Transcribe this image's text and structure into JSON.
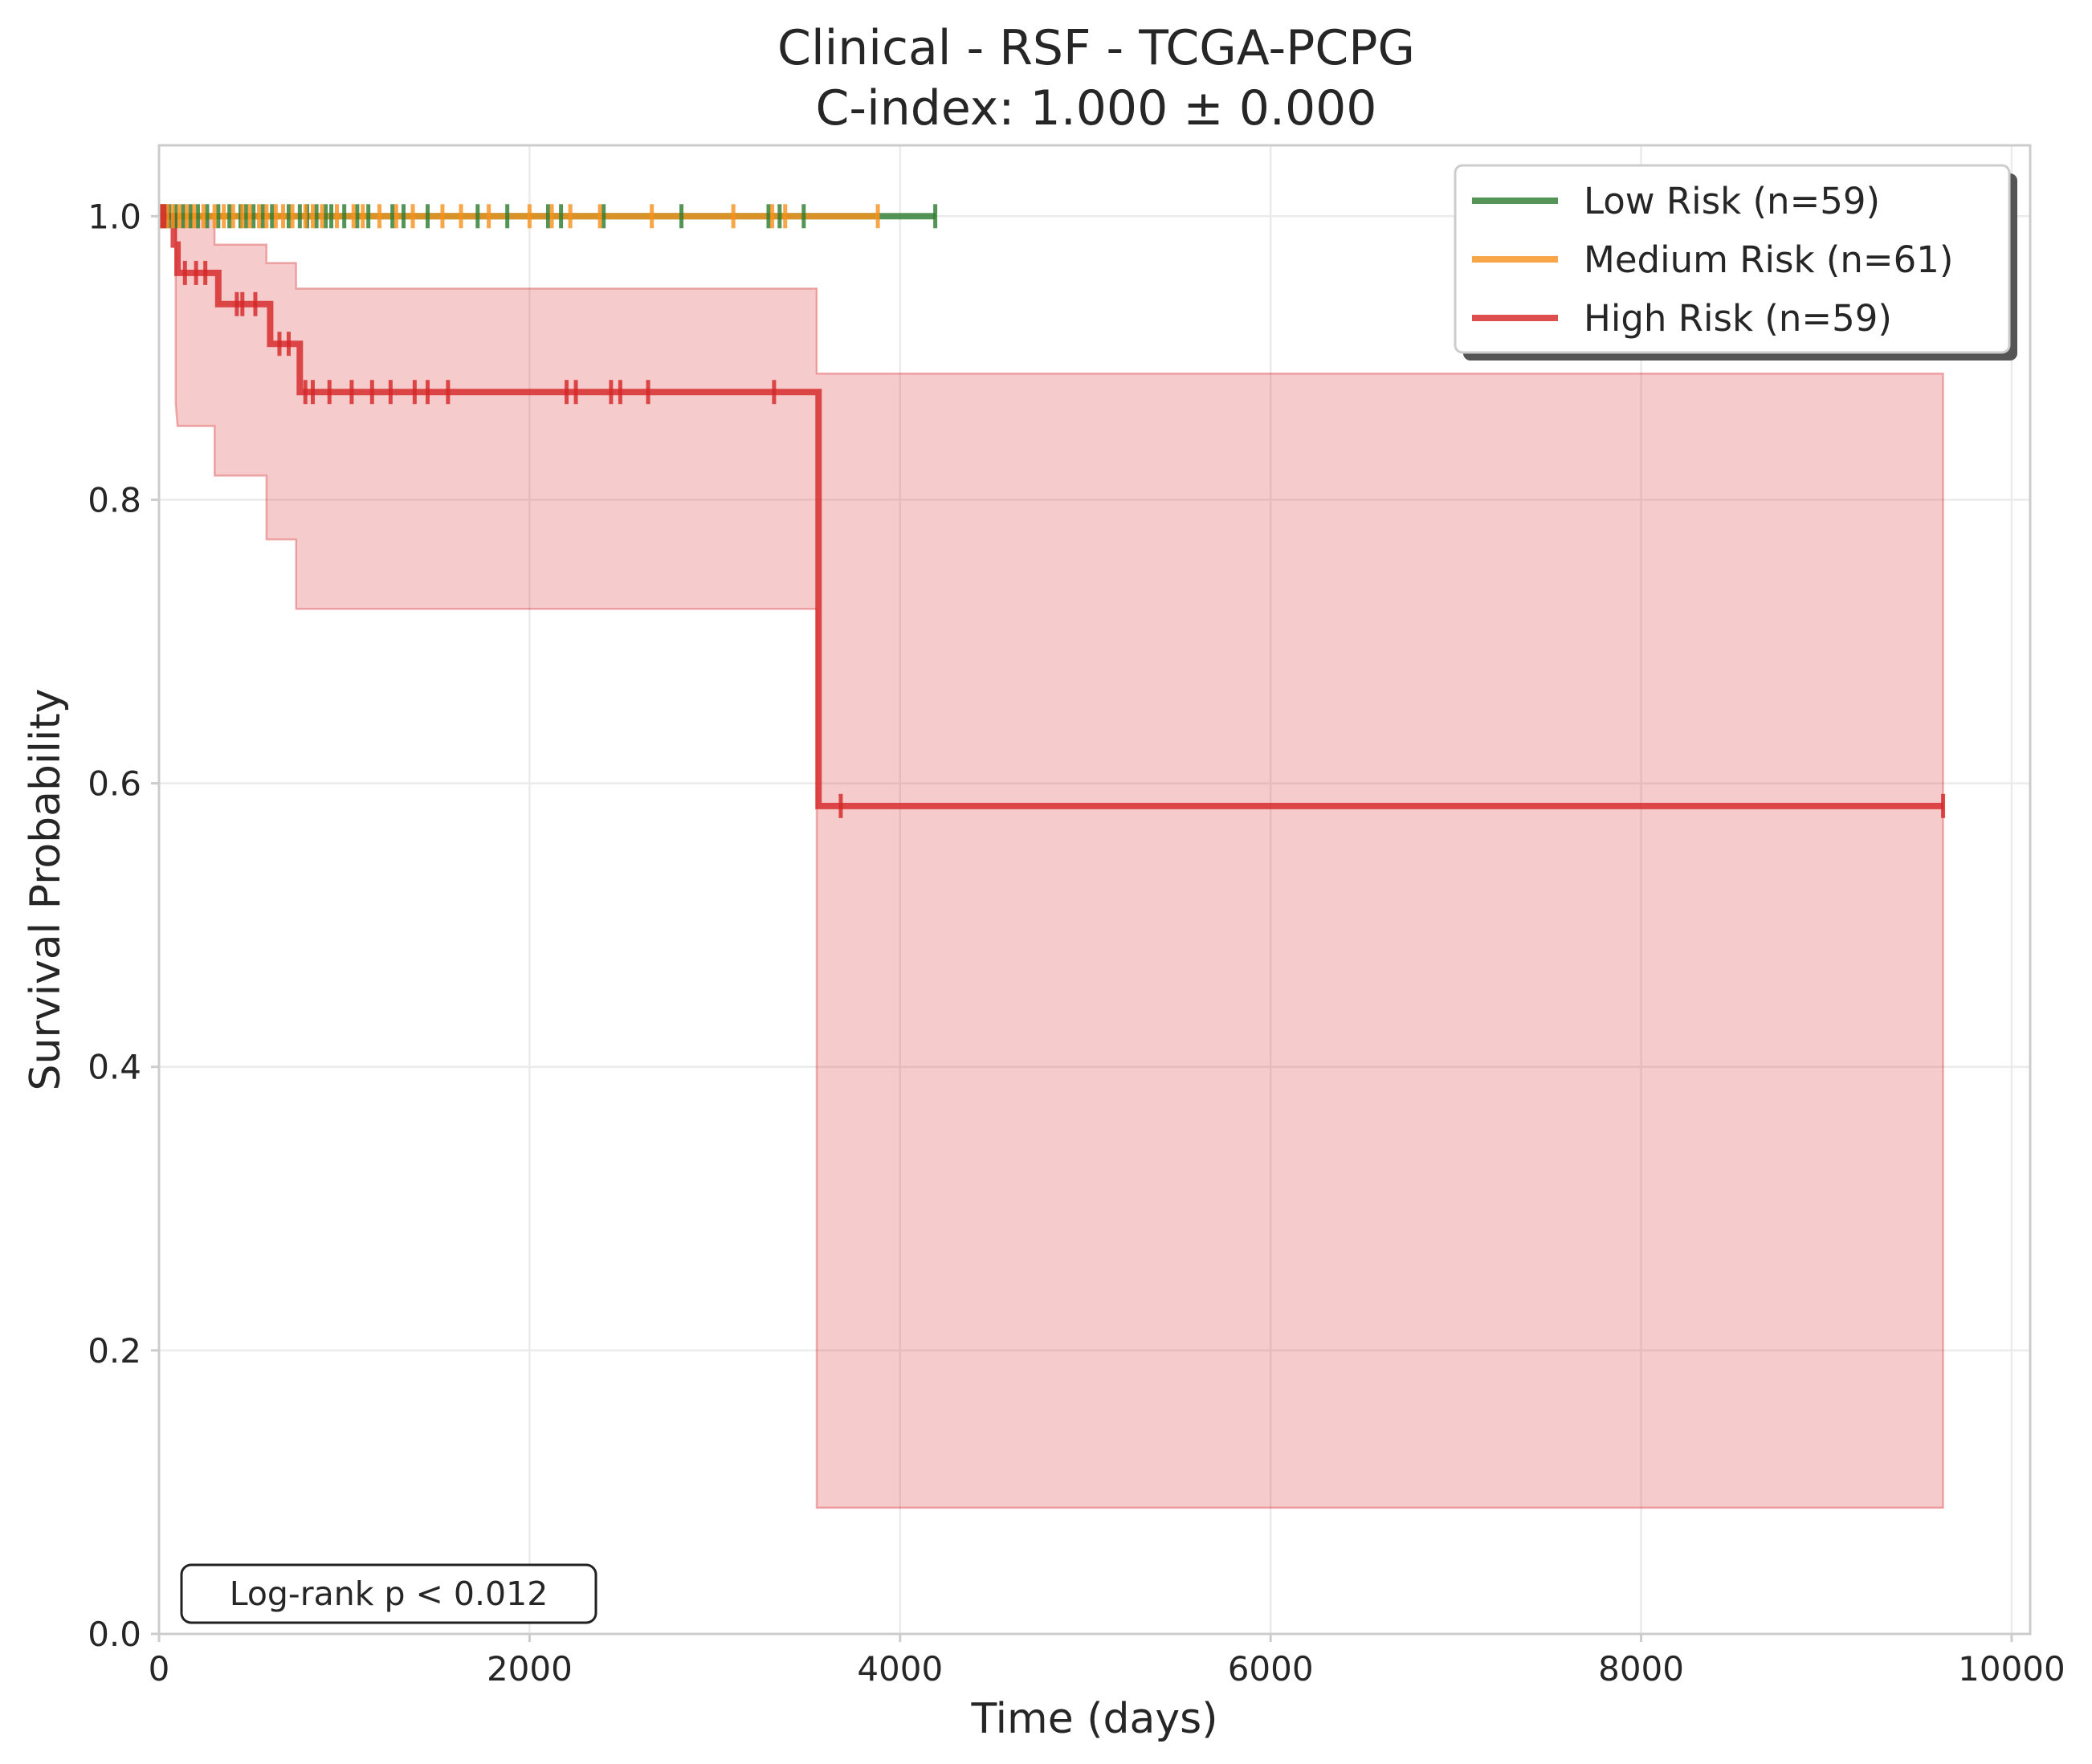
{
  "chart_data": {
    "type": "line",
    "subtype": "kaplan-meier",
    "title_line1": "Clinical - RSF - TCGA-PCPG",
    "title_line2": "C-index: 1.000 ± 0.000",
    "xlabel": "Time (days)",
    "ylabel": "Survival Probability",
    "xlim": [
      0,
      10100
    ],
    "ylim": [
      0,
      1.05
    ],
    "xticks": [
      0,
      2000,
      4000,
      6000,
      8000,
      10000
    ],
    "xtick_labels": [
      "0",
      "2000",
      "4000",
      "6000",
      "8000",
      "10000"
    ],
    "yticks": [
      0,
      0.2,
      0.4,
      0.6,
      0.8,
      1.0
    ],
    "ytick_labels": [
      "0.0",
      "0.2",
      "0.4",
      "0.6",
      "0.8",
      "1.0"
    ],
    "grid": true,
    "legend_position": "top-right",
    "annotation": "Log-rank p < 0.012",
    "series": [
      {
        "name": "Low Risk (n=59)",
        "color": "#2e7d32",
        "steps": [
          [
            0,
            1.0
          ],
          [
            4190,
            1.0
          ]
        ],
        "censors": [
          10,
          30,
          55,
          90,
          130,
          170,
          210,
          260,
          320,
          380,
          440,
          470,
          510,
          560,
          610,
          700,
          760,
          800,
          850,
          900,
          930,
          1000,
          1070,
          1130,
          1260,
          1320,
          1450,
          1720,
          1880,
          2100,
          2170,
          2400,
          2820,
          3290,
          3350,
          3480,
          4190
        ]
      },
      {
        "name": "Medium Risk (n=61)",
        "color": "#f7931e",
        "steps": [
          [
            0,
            1.0
          ],
          [
            3880,
            1.0
          ]
        ],
        "censors": [
          20,
          45,
          75,
          110,
          150,
          190,
          240,
          300,
          350,
          400,
          450,
          490,
          540,
          580,
          630,
          670,
          720,
          790,
          830,
          880,
          960,
          1050,
          1100,
          1190,
          1280,
          1370,
          1530,
          1630,
          1780,
          2000,
          2120,
          2220,
          2380,
          2660,
          3100,
          3310,
          3380,
          3880
        ]
      },
      {
        "name": "High Risk (n=59)",
        "color": "#d62728",
        "steps": [
          [
            0,
            1.0
          ],
          [
            60,
            1.0
          ],
          [
            80,
            0.98
          ],
          [
            100,
            0.96
          ],
          [
            300,
            0.96
          ],
          [
            320,
            0.938
          ],
          [
            580,
            0.938
          ],
          [
            600,
            0.91
          ],
          [
            750,
            0.91
          ],
          [
            760,
            0.876
          ],
          [
            3560,
            0.876
          ],
          [
            3560,
            0.584
          ],
          [
            9630,
            0.584
          ]
        ],
        "ci_upper": [
          [
            90,
            1.0
          ],
          [
            300,
            1.0
          ],
          [
            300,
            0.98
          ],
          [
            580,
            0.98
          ],
          [
            580,
            0.967
          ],
          [
            740,
            0.967
          ],
          [
            740,
            0.949
          ],
          [
            3550,
            0.949
          ],
          [
            3550,
            0.889
          ],
          [
            9630,
            0.889
          ]
        ],
        "ci_lower": [
          [
            90,
            0.868
          ],
          [
            100,
            0.852
          ],
          [
            300,
            0.852
          ],
          [
            300,
            0.817
          ],
          [
            580,
            0.817
          ],
          [
            580,
            0.772
          ],
          [
            740,
            0.772
          ],
          [
            740,
            0.723
          ],
          [
            3550,
            0.723
          ],
          [
            3550,
            0.089
          ],
          [
            9630,
            0.089
          ]
        ],
        "censors": [
          10,
          30,
          140,
          200,
          250,
          420,
          450,
          520,
          650,
          700,
          790,
          830,
          920,
          1040,
          1150,
          1250,
          1380,
          1450,
          1560,
          2200,
          2250,
          2440,
          2490,
          2640,
          3320,
          3680,
          9630
        ]
      }
    ]
  }
}
